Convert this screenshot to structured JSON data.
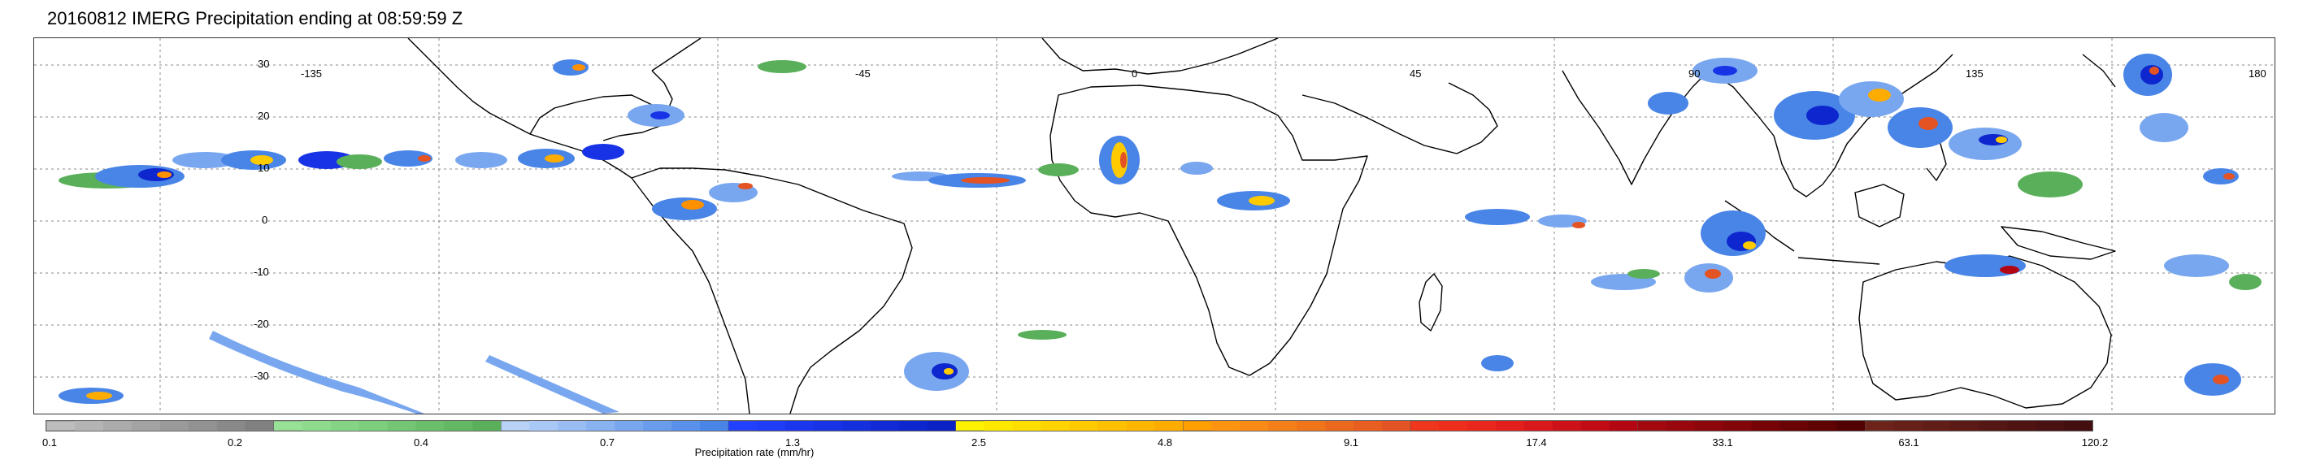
{
  "title": "20160812 IMERG Precipitation ending at 08:59:59 Z",
  "map": {
    "lon_labels": [
      "-135",
      "-45",
      "0",
      "45",
      "90",
      "135",
      "180"
    ],
    "lat_labels": [
      "30",
      "20",
      "10",
      "0",
      "-10",
      "-20",
      "-30"
    ],
    "land_color": "#000000",
    "grid_color": "#888888"
  },
  "colorbar": {
    "title": "Precipitation rate (mm/hr)",
    "tick_labels": [
      "0.1",
      "0.2",
      "0.4",
      "0.7",
      "1.3",
      "2.5",
      "4.8",
      "9.1",
      "17.4",
      "33.1",
      "63.1",
      "120.2"
    ],
    "colors": [
      "#bdbdbd",
      "#b4b4b4",
      "#ababab",
      "#a3a3a3",
      "#9a9a9a",
      "#929292",
      "#898989",
      "#808080",
      "#97e297",
      "#8edb8e",
      "#85d485",
      "#7ccd7c",
      "#74c674",
      "#6bbf6b",
      "#63b863",
      "#5ab05a",
      "#b9d3f7",
      "#a9c8f5",
      "#99bdf3",
      "#89b2f1",
      "#79a7ef",
      "#699cec",
      "#5990ea",
      "#4985e7",
      "#2240ff",
      "#1f3cf7",
      "#1b37ee",
      "#1833e6",
      "#142fde",
      "#112ad5",
      "#0d26cd",
      "#0a22c5",
      "#fff200",
      "#ffe800",
      "#ffde00",
      "#ffd400",
      "#ffca00",
      "#ffc000",
      "#ffb600",
      "#ffac00",
      "#ffa000",
      "#fc9412",
      "#f88a15",
      "#f47f18",
      "#ef741a",
      "#eb691d",
      "#e75e20",
      "#e35323",
      "#f0361c",
      "#ed2e1c",
      "#e9271c",
      "#e31f1c",
      "#d8181a",
      "#cc1218",
      "#c10c16",
      "#b40612",
      "#a4080f",
      "#98070d",
      "#8d060b",
      "#820509",
      "#760407",
      "#6a0306",
      "#5e0204",
      "#520002",
      "#6d231a",
      "#672019",
      "#611d17",
      "#5b1a15",
      "#551714",
      "#4f1412",
      "#491111",
      "#430e0f"
    ]
  }
}
